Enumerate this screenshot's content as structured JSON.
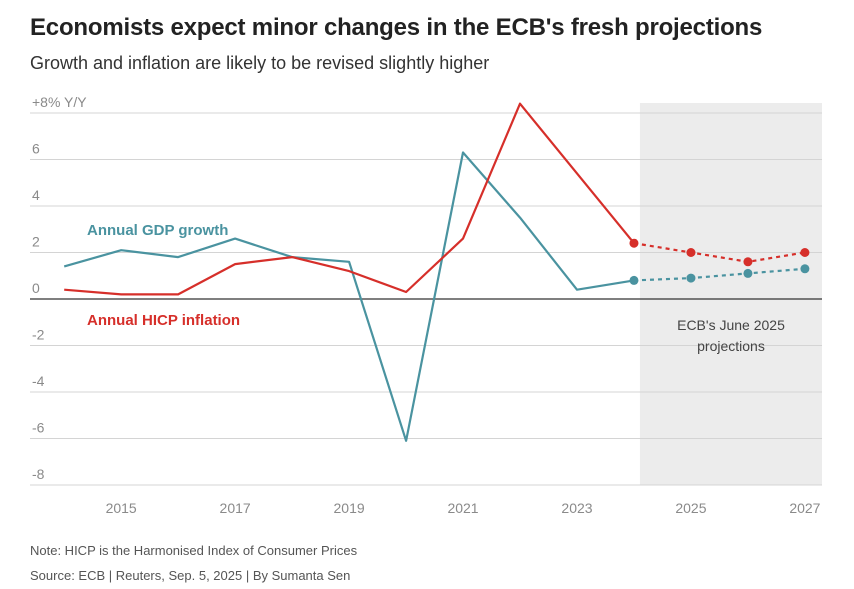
{
  "title": "Economists expect minor changes in the ECB's fresh projections",
  "subtitle": "Growth and inflation are likely to be revised slightly higher",
  "note": "Note: HICP is the Harmonised Index of Consumer Prices",
  "source": "Source: ECB | Reuters, Sep. 5, 2025 | By Sumanta Sen",
  "colors": {
    "gdp": "#4a93a0",
    "hicp": "#d62f2a",
    "projection_shade": "#ececec",
    "grid": "#d4d4d4",
    "zero_line": "#333333",
    "axis_text": "#8a8a8a"
  },
  "chart_data": {
    "type": "line",
    "title": "Economists expect minor changes in the ECB's fresh projections",
    "subtitle": "Growth and inflation are likely to be revised slightly higher",
    "ylabel": "+8% Y/Y",
    "xlabel": "",
    "ylim": [
      -8,
      8
    ],
    "yticks": [
      -8,
      -6,
      -4,
      -2,
      0,
      2,
      4,
      6,
      8
    ],
    "ytick_labels": [
      "-8",
      "-6",
      "-4",
      "-2",
      "0",
      "2",
      "4",
      "6",
      "+8% Y/Y"
    ],
    "xlim": [
      2013.4,
      2027.3
    ],
    "xticks": [
      2015,
      2017,
      2019,
      2021,
      2023,
      2025,
      2027
    ],
    "xtick_labels": [
      "2015",
      "2017",
      "2019",
      "2021",
      "2023",
      "2025",
      "2027"
    ],
    "grid": true,
    "projection_start": 2024,
    "projection_label": "ECB's June 2025 projections",
    "series": [
      {
        "name": "Annual GDP growth",
        "key": "gdp",
        "x": [
          2014,
          2015,
          2016,
          2017,
          2018,
          2019,
          2020,
          2021,
          2022,
          2023,
          2024
        ],
        "values": [
          1.4,
          2.1,
          1.8,
          2.6,
          1.8,
          1.6,
          -6.1,
          6.3,
          3.5,
          0.4,
          0.8
        ],
        "projection_x": [
          2024,
          2025,
          2026,
          2027
        ],
        "projection_values": [
          0.8,
          0.9,
          1.1,
          1.3
        ]
      },
      {
        "name": "Annual HICP inflation",
        "key": "hicp",
        "x": [
          2014,
          2015,
          2016,
          2017,
          2018,
          2019,
          2020,
          2021,
          2022,
          2023,
          2024
        ],
        "values": [
          0.4,
          0.2,
          0.2,
          1.5,
          1.8,
          1.2,
          0.3,
          2.6,
          8.4,
          5.4,
          2.4
        ],
        "projection_x": [
          2024,
          2025,
          2026,
          2027
        ],
        "projection_values": [
          2.4,
          2.0,
          1.6,
          2.0
        ]
      }
    ]
  }
}
